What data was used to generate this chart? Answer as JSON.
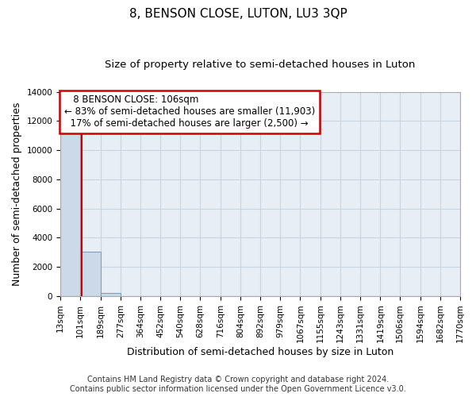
{
  "title": "8, BENSON CLOSE, LUTON, LU3 3QP",
  "subtitle": "Size of property relative to semi-detached houses in Luton",
  "xlabel": "Distribution of semi-detached houses by size in Luton",
  "ylabel": "Number of semi-detached properties",
  "bar_color": "#ccd9e8",
  "bar_edge_color": "#7a9fc2",
  "grid_color": "#c8d4e0",
  "background_color": "#e8eef5",
  "bin_edges": [
    13,
    101,
    189,
    277,
    364,
    452,
    540,
    628,
    716,
    804,
    892,
    979,
    1067,
    1155,
    1243,
    1331,
    1419,
    1506,
    1594,
    1682,
    1770
  ],
  "bin_labels": [
    "13sqm",
    "101sqm",
    "189sqm",
    "277sqm",
    "364sqm",
    "452sqm",
    "540sqm",
    "628sqm",
    "716sqm",
    "804sqm",
    "892sqm",
    "979sqm",
    "1067sqm",
    "1155sqm",
    "1243sqm",
    "1331sqm",
    "1419sqm",
    "1506sqm",
    "1594sqm",
    "1682sqm",
    "1770sqm"
  ],
  "bar_heights": [
    11300,
    3050,
    200,
    0,
    0,
    0,
    0,
    0,
    0,
    0,
    0,
    0,
    0,
    0,
    0,
    0,
    0,
    0,
    0,
    0
  ],
  "ylim": [
    0,
    14000
  ],
  "yticks": [
    0,
    2000,
    4000,
    6000,
    8000,
    10000,
    12000,
    14000
  ],
  "property_size": 106,
  "property_label": "8 BENSON CLOSE: 106sqm",
  "smaller_pct": 83,
  "smaller_count": "11,903",
  "larger_pct": 17,
  "larger_count": "2,500",
  "annotation_box_color": "#cc0000",
  "property_line_color": "#cc0000",
  "footer_line1": "Contains HM Land Registry data © Crown copyright and database right 2024.",
  "footer_line2": "Contains public sector information licensed under the Open Government Licence v3.0.",
  "title_fontsize": 11,
  "subtitle_fontsize": 9.5,
  "axis_label_fontsize": 9,
  "tick_fontsize": 7.5,
  "annotation_fontsize": 8.5,
  "footer_fontsize": 7
}
